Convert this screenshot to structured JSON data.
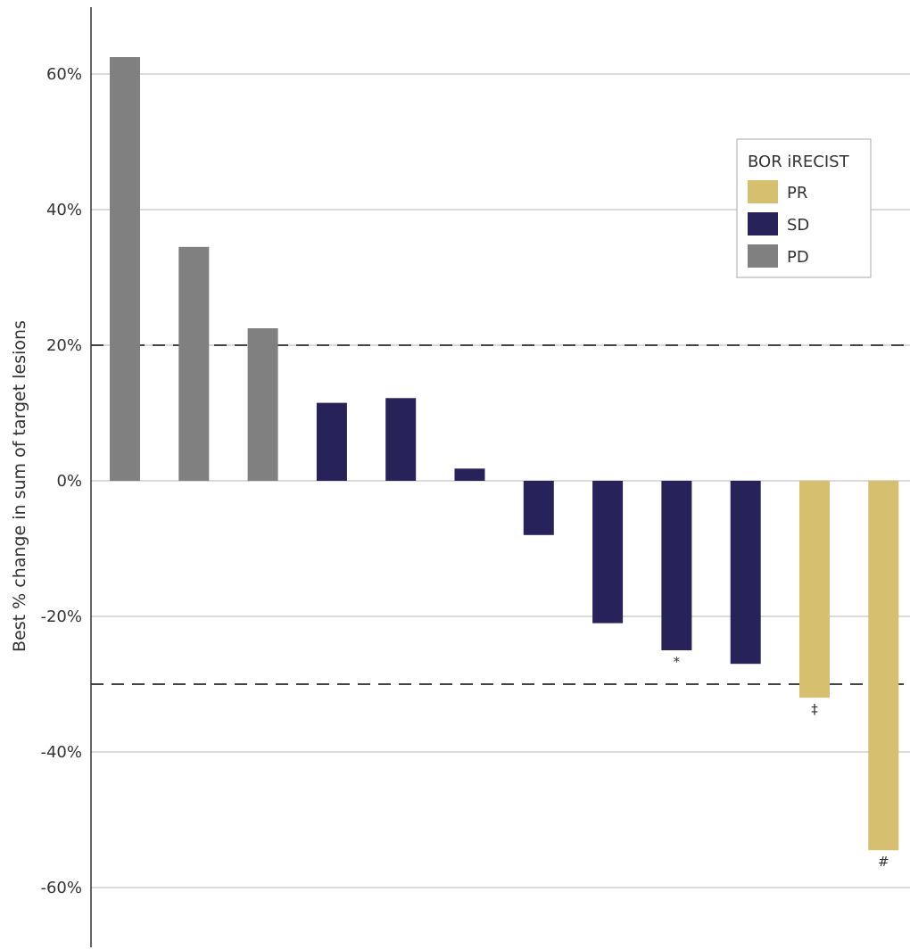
{
  "chart_data": {
    "type": "bar",
    "title": "",
    "xlabel": "",
    "ylabel": "Best % change in sum of target lesions",
    "ylim": [
      -70,
      70
    ],
    "yticks": [
      60,
      40,
      20,
      0,
      -20,
      -40,
      -60
    ],
    "ytick_labels": [
      "60%",
      "40%",
      "20%",
      "0%",
      "-20%",
      "-40%",
      "-60%"
    ],
    "reference_lines": [
      20,
      -30
    ],
    "grid": true,
    "legend": {
      "title": "BOR iRECIST",
      "placement": "top-right",
      "entries": [
        {
          "label": "PR",
          "color": "#d6bf6e"
        },
        {
          "label": "SD",
          "color": "#27235a"
        },
        {
          "label": "PD",
          "color": "#808080"
        }
      ]
    },
    "values": [
      62.5,
      34.5,
      22.5,
      11.5,
      12.2,
      1.8,
      -8,
      -21,
      -25,
      -27,
      -32,
      -54.5
    ],
    "categories_response": [
      "PD",
      "PD",
      "PD",
      "SD",
      "SD",
      "SD",
      "SD",
      "SD",
      "SD",
      "SD",
      "PR",
      "PR"
    ],
    "annotations": [
      "",
      "",
      "",
      "",
      "",
      "",
      "",
      "",
      "*",
      "",
      "‡",
      "#"
    ]
  }
}
